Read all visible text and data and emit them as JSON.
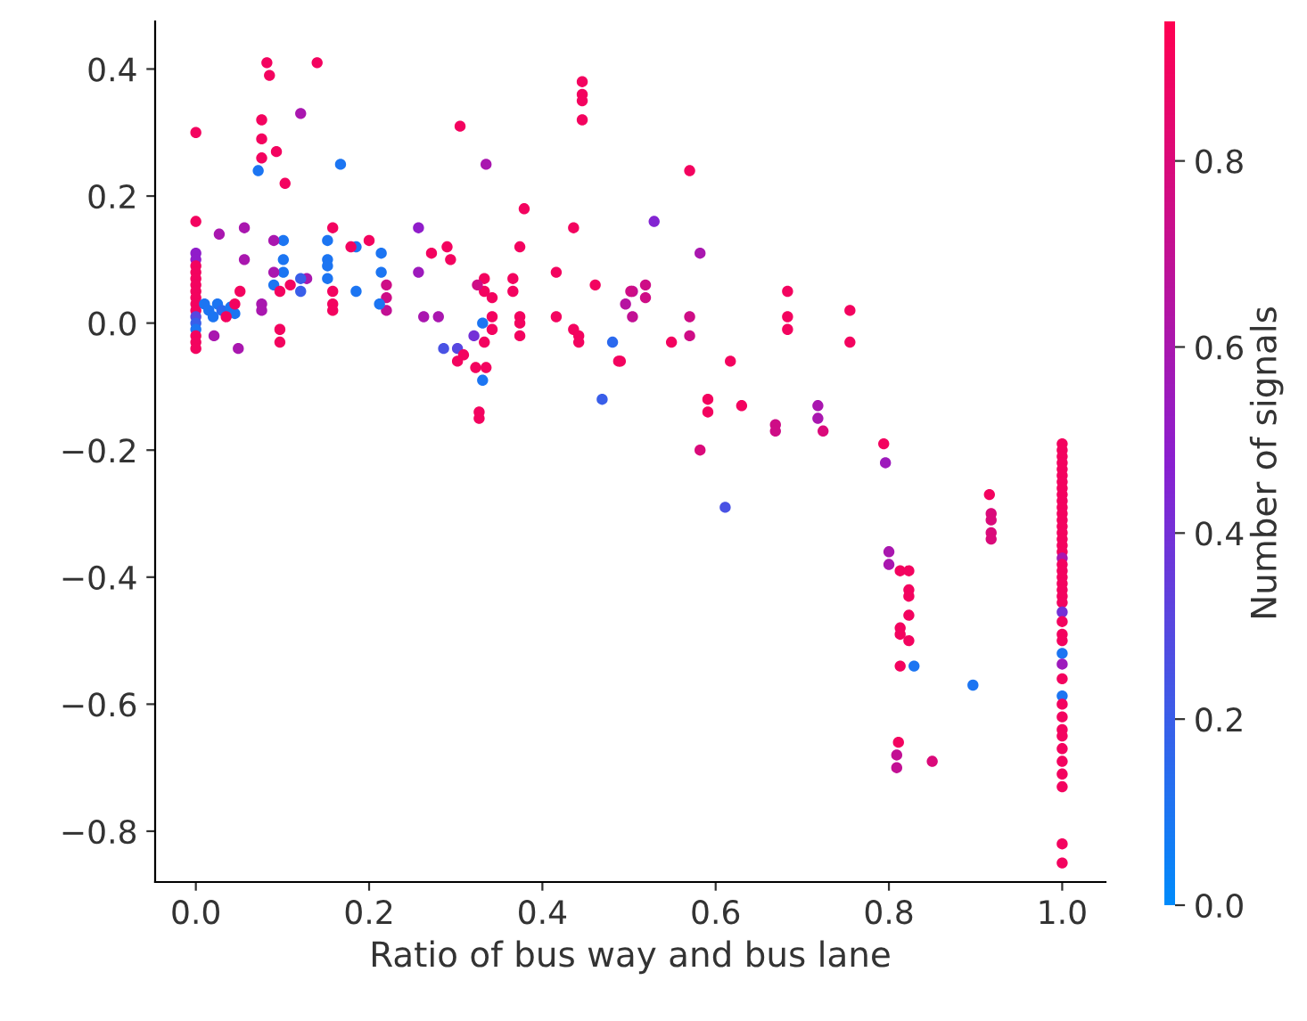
{
  "chart_data": {
    "type": "scatter",
    "xlabel": "Ratio of bus way and bus lane",
    "clabel": "Number of signals",
    "marker": "circle",
    "xlim": [
      -0.047,
      1.05
    ],
    "ylim": [
      -0.88,
      0.475
    ],
    "xticks": [
      {
        "value": 0,
        "label": "0.0"
      },
      {
        "value": 0.2,
        "label": "0.2"
      },
      {
        "value": 0.4,
        "label": "0.4"
      },
      {
        "value": 0.6,
        "label": "0.6"
      },
      {
        "value": 0.8,
        "label": "0.8"
      },
      {
        "value": 1.0,
        "label": "1.0"
      }
    ],
    "yticks": [
      {
        "value": -0.8,
        "label": "−0.8"
      },
      {
        "value": -0.6,
        "label": "−0.6"
      },
      {
        "value": -0.4,
        "label": "−0.4"
      },
      {
        "value": -0.2,
        "label": "−0.2"
      },
      {
        "value": 0,
        "label": "0.0"
      },
      {
        "value": 0.2,
        "label": "0.2"
      },
      {
        "value": 0.4,
        "label": "0.4"
      }
    ],
    "clim": [
      0,
      0.95
    ],
    "cticks": [
      {
        "value": 0,
        "label": "0.0"
      },
      {
        "value": 0.2,
        "label": "0.2"
      },
      {
        "value": 0.4,
        "label": "0.4"
      },
      {
        "value": 0.6,
        "label": "0.6"
      },
      {
        "value": 0.8,
        "label": "0.8"
      }
    ],
    "series": [
      {
        "x": [
          0,
          0,
          0,
          0,
          0,
          0,
          0,
          0,
          0,
          0,
          0,
          0,
          0,
          0,
          0,
          0,
          0,
          0,
          0.01,
          0.015,
          0.02,
          0.025,
          0.03,
          0.04,
          0.045,
          0.021,
          0.027,
          0.035,
          0.045,
          0.051,
          0.056,
          0.056,
          0.049,
          0.076,
          0.076,
          0.082,
          0.085,
          0.14,
          0.121,
          0.076,
          0.076,
          0.076,
          0.072,
          0.093,
          0.103,
          0.167,
          0.305,
          0.335,
          0.446,
          0.446,
          0.446,
          0.446,
          0.379,
          0.374,
          0.436,
          0.461,
          0.504,
          0.496,
          0.504,
          0.488,
          0.481,
          0.469,
          0.436,
          0.442,
          0.442,
          0.416,
          0.416,
          0.374,
          0.374,
          0.374,
          0.366,
          0.366,
          0.333,
          0.333,
          0.325,
          0.342,
          0.342,
          0.342,
          0.333,
          0.331,
          0.321,
          0.302,
          0.286,
          0.309,
          0.302,
          0.323,
          0.335,
          0.331,
          0.327,
          0.327,
          0.29,
          0.294,
          0.272,
          0.257,
          0.257,
          0.263,
          0.28,
          0.22,
          0.22,
          0.22,
          0.214,
          0.214,
          0.212,
          0.185,
          0.185,
          0.2,
          0.179,
          0.158,
          0.152,
          0.152,
          0.152,
          0.152,
          0.158,
          0.158,
          0.158,
          0.128,
          0.121,
          0.121,
          0.109,
          0.101,
          0.101,
          0.101,
          0.09,
          0.09,
          0.09,
          0.097,
          0.097,
          0.097,
          0.57,
          0.529,
          0.582,
          0.502,
          0.519,
          0.519,
          0.49,
          0.549,
          0.57,
          0.57,
          0.617,
          0.683,
          0.683,
          0.683,
          0.755,
          0.755,
          0.591,
          0.591,
          0.63,
          0.669,
          0.669,
          0.718,
          0.718,
          0.724,
          0.794,
          0.582,
          0.611,
          0.796,
          0.8,
          0.8,
          0.813,
          0.823,
          0.823,
          0.823,
          0.823,
          0.813,
          0.813,
          0.823,
          0.813,
          0.829,
          0.897,
          0.811,
          0.809,
          0.809,
          0.85,
          0.916,
          0.918,
          0.918,
          0.918,
          0.918,
          1,
          1,
          1,
          1,
          1,
          1,
          1,
          1,
          1,
          1,
          1,
          1,
          1,
          1,
          1,
          1,
          1,
          1,
          1,
          1,
          1,
          1,
          1,
          1,
          1,
          1,
          1,
          1,
          1,
          1,
          1,
          1,
          1,
          1,
          1,
          1,
          1,
          1,
          1,
          1,
          1,
          1,
          1,
          1
        ],
        "values": [
          0.3,
          0.16,
          0.11,
          0.1,
          0.09,
          0.08,
          0.07,
          0.06,
          0.05,
          0.04,
          0.03,
          0.02,
          0.01,
          0.0,
          -0.01,
          -0.02,
          -0.03,
          -0.04,
          0.03,
          0.02,
          0.01,
          0.03,
          0.02,
          0.025,
          0.015,
          -0.02,
          0.14,
          0.01,
          0.03,
          0.05,
          0.15,
          0.1,
          -0.04,
          0.03,
          0.02,
          0.41,
          0.39,
          0.41,
          0.33,
          0.32,
          0.29,
          0.26,
          0.24,
          0.27,
          0.22,
          0.25,
          0.31,
          0.25,
          0.38,
          0.36,
          0.35,
          0.32,
          0.18,
          0.12,
          0.15,
          0.06,
          0.05,
          0.03,
          0.01,
          -0.06,
          -0.03,
          -0.12,
          -0.01,
          -0.02,
          -0.03,
          0.08,
          0.01,
          0.01,
          0.0,
          -0.02,
          0.07,
          0.05,
          0.07,
          0.05,
          0.06,
          0.04,
          0.01,
          -0.01,
          -0.03,
          0.0,
          -0.02,
          -0.04,
          -0.04,
          -0.05,
          -0.06,
          -0.07,
          -0.07,
          -0.09,
          -0.14,
          -0.15,
          0.12,
          0.1,
          0.11,
          0.15,
          0.08,
          0.01,
          0.01,
          0.06,
          0.04,
          0.02,
          0.11,
          0.08,
          0.03,
          0.12,
          0.05,
          0.13,
          0.12,
          0.15,
          0.13,
          0.1,
          0.09,
          0.07,
          0.05,
          0.03,
          0.02,
          0.07,
          0.05,
          0.07,
          0.06,
          0.13,
          0.1,
          0.08,
          0.06,
          0.13,
          0.08,
          0.05,
          -0.01,
          -0.03,
          0.24,
          0.16,
          0.11,
          0.05,
          0.06,
          0.04,
          -0.06,
          -0.03,
          0.01,
          -0.02,
          -0.06,
          0.05,
          0.01,
          -0.01,
          0.02,
          -0.03,
          -0.12,
          -0.14,
          -0.13,
          -0.16,
          -0.17,
          -0.13,
          -0.15,
          -0.17,
          -0.19,
          -0.2,
          -0.29,
          -0.22,
          -0.36,
          -0.38,
          -0.39,
          -0.39,
          -0.42,
          -0.43,
          -0.46,
          -0.48,
          -0.49,
          -0.5,
          -0.54,
          -0.54,
          -0.57,
          -0.66,
          -0.68,
          -0.7,
          -0.69,
          -0.27,
          -0.3,
          -0.31,
          -0.33,
          -0.34,
          -0.19,
          -0.2,
          -0.21,
          -0.22,
          -0.23,
          -0.24,
          -0.25,
          -0.26,
          -0.27,
          -0.28,
          -0.29,
          -0.3,
          -0.31,
          -0.32,
          -0.33,
          -0.34,
          -0.35,
          -0.36,
          -0.37,
          -0.38,
          -0.39,
          -0.4,
          -0.41,
          -0.42,
          -0.43,
          -0.44,
          -0.455,
          -0.47,
          -0.49,
          -0.5,
          -0.52,
          -0.537,
          -0.56,
          -0.587,
          -0.6,
          -0.62,
          -0.64,
          -0.65,
          -0.67,
          -0.69,
          -0.71,
          -0.73,
          -0.82,
          -0.85
        ],
        "cvalues": [
          0.9,
          0.9,
          0.5,
          0.5,
          0.9,
          0.9,
          0.9,
          0.9,
          0.9,
          0.9,
          0.9,
          0.9,
          0.3,
          0.2,
          0.1,
          0.9,
          0.9,
          0.9,
          0.1,
          0.1,
          0.1,
          0.1,
          0.15,
          0.1,
          0.1,
          0.6,
          0.6,
          0.9,
          0.9,
          0.9,
          0.6,
          0.6,
          0.6,
          0.6,
          0.6,
          0.9,
          0.9,
          0.9,
          0.6,
          0.9,
          0.9,
          0.9,
          0.1,
          0.9,
          0.9,
          0.1,
          0.9,
          0.6,
          0.9,
          0.9,
          0.9,
          0.9,
          0.9,
          0.9,
          0.9,
          0.9,
          0.7,
          0.65,
          0.7,
          0.9,
          0.15,
          0.2,
          0.9,
          0.9,
          0.9,
          0.9,
          0.9,
          0.9,
          0.9,
          0.9,
          0.9,
          0.9,
          0.9,
          0.9,
          0.75,
          0.9,
          0.9,
          0.9,
          0.9,
          0.1,
          0.4,
          0.3,
          0.25,
          0.9,
          0.9,
          0.9,
          0.9,
          0.1,
          0.9,
          0.9,
          0.9,
          0.9,
          0.9,
          0.5,
          0.55,
          0.6,
          0.6,
          0.75,
          0.75,
          0.7,
          0.1,
          0.1,
          0.1,
          0.1,
          0.1,
          0.9,
          0.9,
          0.9,
          0.1,
          0.1,
          0.1,
          0.1,
          0.9,
          0.9,
          0.9,
          0.6,
          0.2,
          0.2,
          0.9,
          0.1,
          0.1,
          0.1,
          0.1,
          0.6,
          0.6,
          0.9,
          0.9,
          0.9,
          0.9,
          0.45,
          0.6,
          0.75,
          0.75,
          0.75,
          0.9,
          0.9,
          0.75,
          0.75,
          0.9,
          0.9,
          0.9,
          0.9,
          0.9,
          0.9,
          0.9,
          0.9,
          0.9,
          0.75,
          0.75,
          0.6,
          0.6,
          0.8,
          0.9,
          0.8,
          0.25,
          0.55,
          0.6,
          0.6,
          0.9,
          0.9,
          0.9,
          0.9,
          0.9,
          0.9,
          0.9,
          0.9,
          0.9,
          0.1,
          0.1,
          0.9,
          0.7,
          0.7,
          0.8,
          0.9,
          0.8,
          0.8,
          0.8,
          0.8,
          0.9,
          0.9,
          0.9,
          0.9,
          0.9,
          0.9,
          0.9,
          0.9,
          0.9,
          0.9,
          0.9,
          0.9,
          0.9,
          0.9,
          0.9,
          0.9,
          0.9,
          0.9,
          0.6,
          0.9,
          0.9,
          0.9,
          0.9,
          0.9,
          0.9,
          0.9,
          0.4,
          0.9,
          0.9,
          0.9,
          0.1,
          0.55,
          0.9,
          0.1,
          0.9,
          0.9,
          0.9,
          0.9,
          0.9,
          0.9,
          0.9,
          0.9,
          0.9,
          0.9
        ]
      }
    ]
  }
}
